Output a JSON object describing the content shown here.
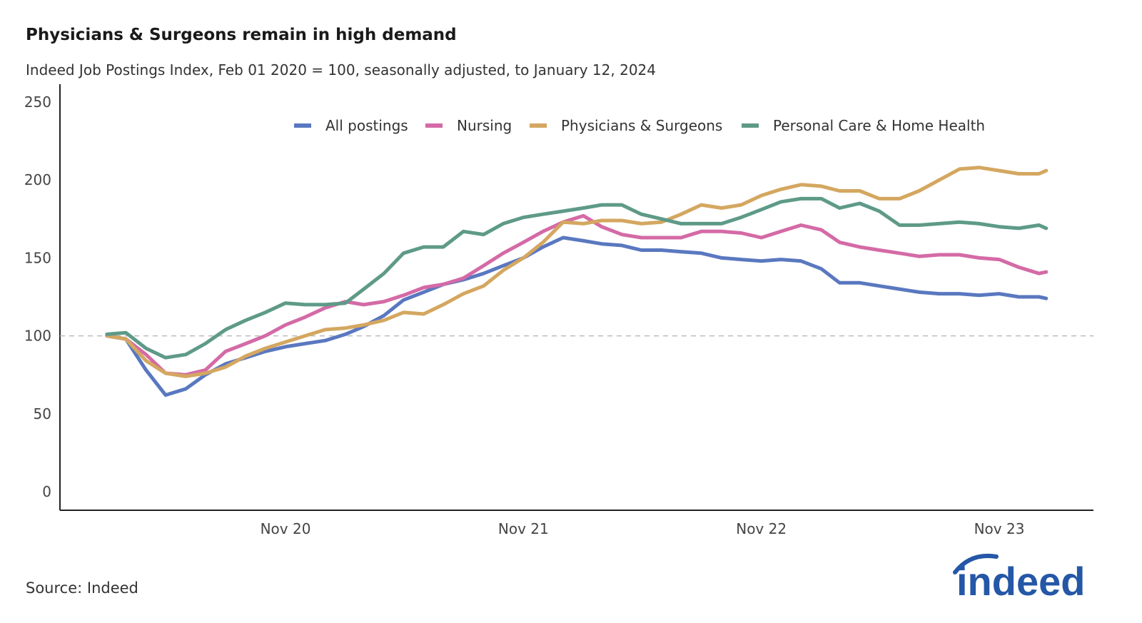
{
  "chart_data": {
    "type": "line",
    "title": "Physicians & Surgeons remain in high demand",
    "subtitle": "Indeed Job Postings Index, Feb 01 2020 = 100, seasonally adjusted, to January 12, 2024",
    "xlabel": "",
    "ylabel": "",
    "ylim": [
      0,
      250
    ],
    "yticks": [
      0,
      50,
      100,
      150,
      200,
      250
    ],
    "xticks": [
      {
        "date": "2020-11-01",
        "label": "Nov 20"
      },
      {
        "date": "2021-11-01",
        "label": "Nov 21"
      },
      {
        "date": "2022-11-01",
        "label": "Nov 22"
      },
      {
        "date": "2023-11-01",
        "label": "Nov 23"
      }
    ],
    "reference_line": 100,
    "grid": false,
    "legend_position": "top",
    "x": [
      "2020-02-01",
      "2020-03-01",
      "2020-04-01",
      "2020-05-01",
      "2020-06-01",
      "2020-07-01",
      "2020-08-01",
      "2020-09-01",
      "2020-10-01",
      "2020-11-01",
      "2020-12-01",
      "2021-01-01",
      "2021-02-01",
      "2021-03-01",
      "2021-04-01",
      "2021-05-01",
      "2021-06-01",
      "2021-07-01",
      "2021-08-01",
      "2021-09-01",
      "2021-10-01",
      "2021-11-01",
      "2021-12-01",
      "2022-01-01",
      "2022-02-01",
      "2022-03-01",
      "2022-04-01",
      "2022-05-01",
      "2022-06-01",
      "2022-07-01",
      "2022-08-01",
      "2022-09-01",
      "2022-10-01",
      "2022-11-01",
      "2022-12-01",
      "2023-01-01",
      "2023-02-01",
      "2023-03-01",
      "2023-04-01",
      "2023-05-01",
      "2023-06-01",
      "2023-07-01",
      "2023-08-01",
      "2023-09-01",
      "2023-10-01",
      "2023-11-01",
      "2023-12-01",
      "2024-01-01",
      "2024-01-12"
    ],
    "series": [
      {
        "name": "All postings",
        "color": "#5a78c0",
        "values": [
          100,
          98,
          78,
          62,
          66,
          75,
          82,
          86,
          90,
          93,
          95,
          97,
          101,
          106,
          113,
          123,
          128,
          133,
          136,
          140,
          145,
          150,
          157,
          163,
          161,
          159,
          158,
          155,
          155,
          154,
          153,
          150,
          149,
          148,
          149,
          148,
          143,
          134,
          134,
          132,
          130,
          128,
          127,
          127,
          126,
          127,
          125,
          125,
          124
        ]
      },
      {
        "name": "Nursing",
        "color": "#d46aa6",
        "values": [
          100,
          98,
          88,
          76,
          75,
          78,
          90,
          95,
          100,
          107,
          112,
          118,
          122,
          120,
          122,
          126,
          131,
          133,
          137,
          145,
          153,
          160,
          167,
          173,
          177,
          170,
          165,
          163,
          163,
          163,
          167,
          167,
          166,
          163,
          167,
          171,
          168,
          160,
          157,
          155,
          153,
          151,
          152,
          152,
          150,
          149,
          144,
          140,
          141
        ]
      },
      {
        "name": "Physicians & Surgeons",
        "color": "#d4a760",
        "values": [
          100,
          98,
          84,
          76,
          74,
          76,
          80,
          87,
          92,
          96,
          100,
          104,
          105,
          107,
          110,
          115,
          114,
          120,
          127,
          132,
          142,
          150,
          160,
          173,
          172,
          174,
          174,
          172,
          173,
          178,
          184,
          182,
          184,
          190,
          194,
          197,
          196,
          193,
          193,
          188,
          188,
          193,
          200,
          207,
          208,
          206,
          204,
          204,
          206
        ]
      },
      {
        "name": "Personal Care & Home Health",
        "color": "#5e9a88",
        "values": [
          101,
          102,
          92,
          86,
          88,
          95,
          104,
          110,
          115,
          121,
          120,
          120,
          121,
          130,
          140,
          153,
          157,
          157,
          167,
          165,
          172,
          176,
          178,
          180,
          182,
          184,
          184,
          178,
          175,
          172,
          172,
          172,
          176,
          181,
          186,
          188,
          188,
          182,
          185,
          180,
          171,
          171,
          172,
          173,
          172,
          170,
          169,
          171,
          169
        ]
      }
    ],
    "source": "Source: Indeed"
  },
  "logo": {
    "text": "indeed",
    "color": "#2557a7"
  }
}
